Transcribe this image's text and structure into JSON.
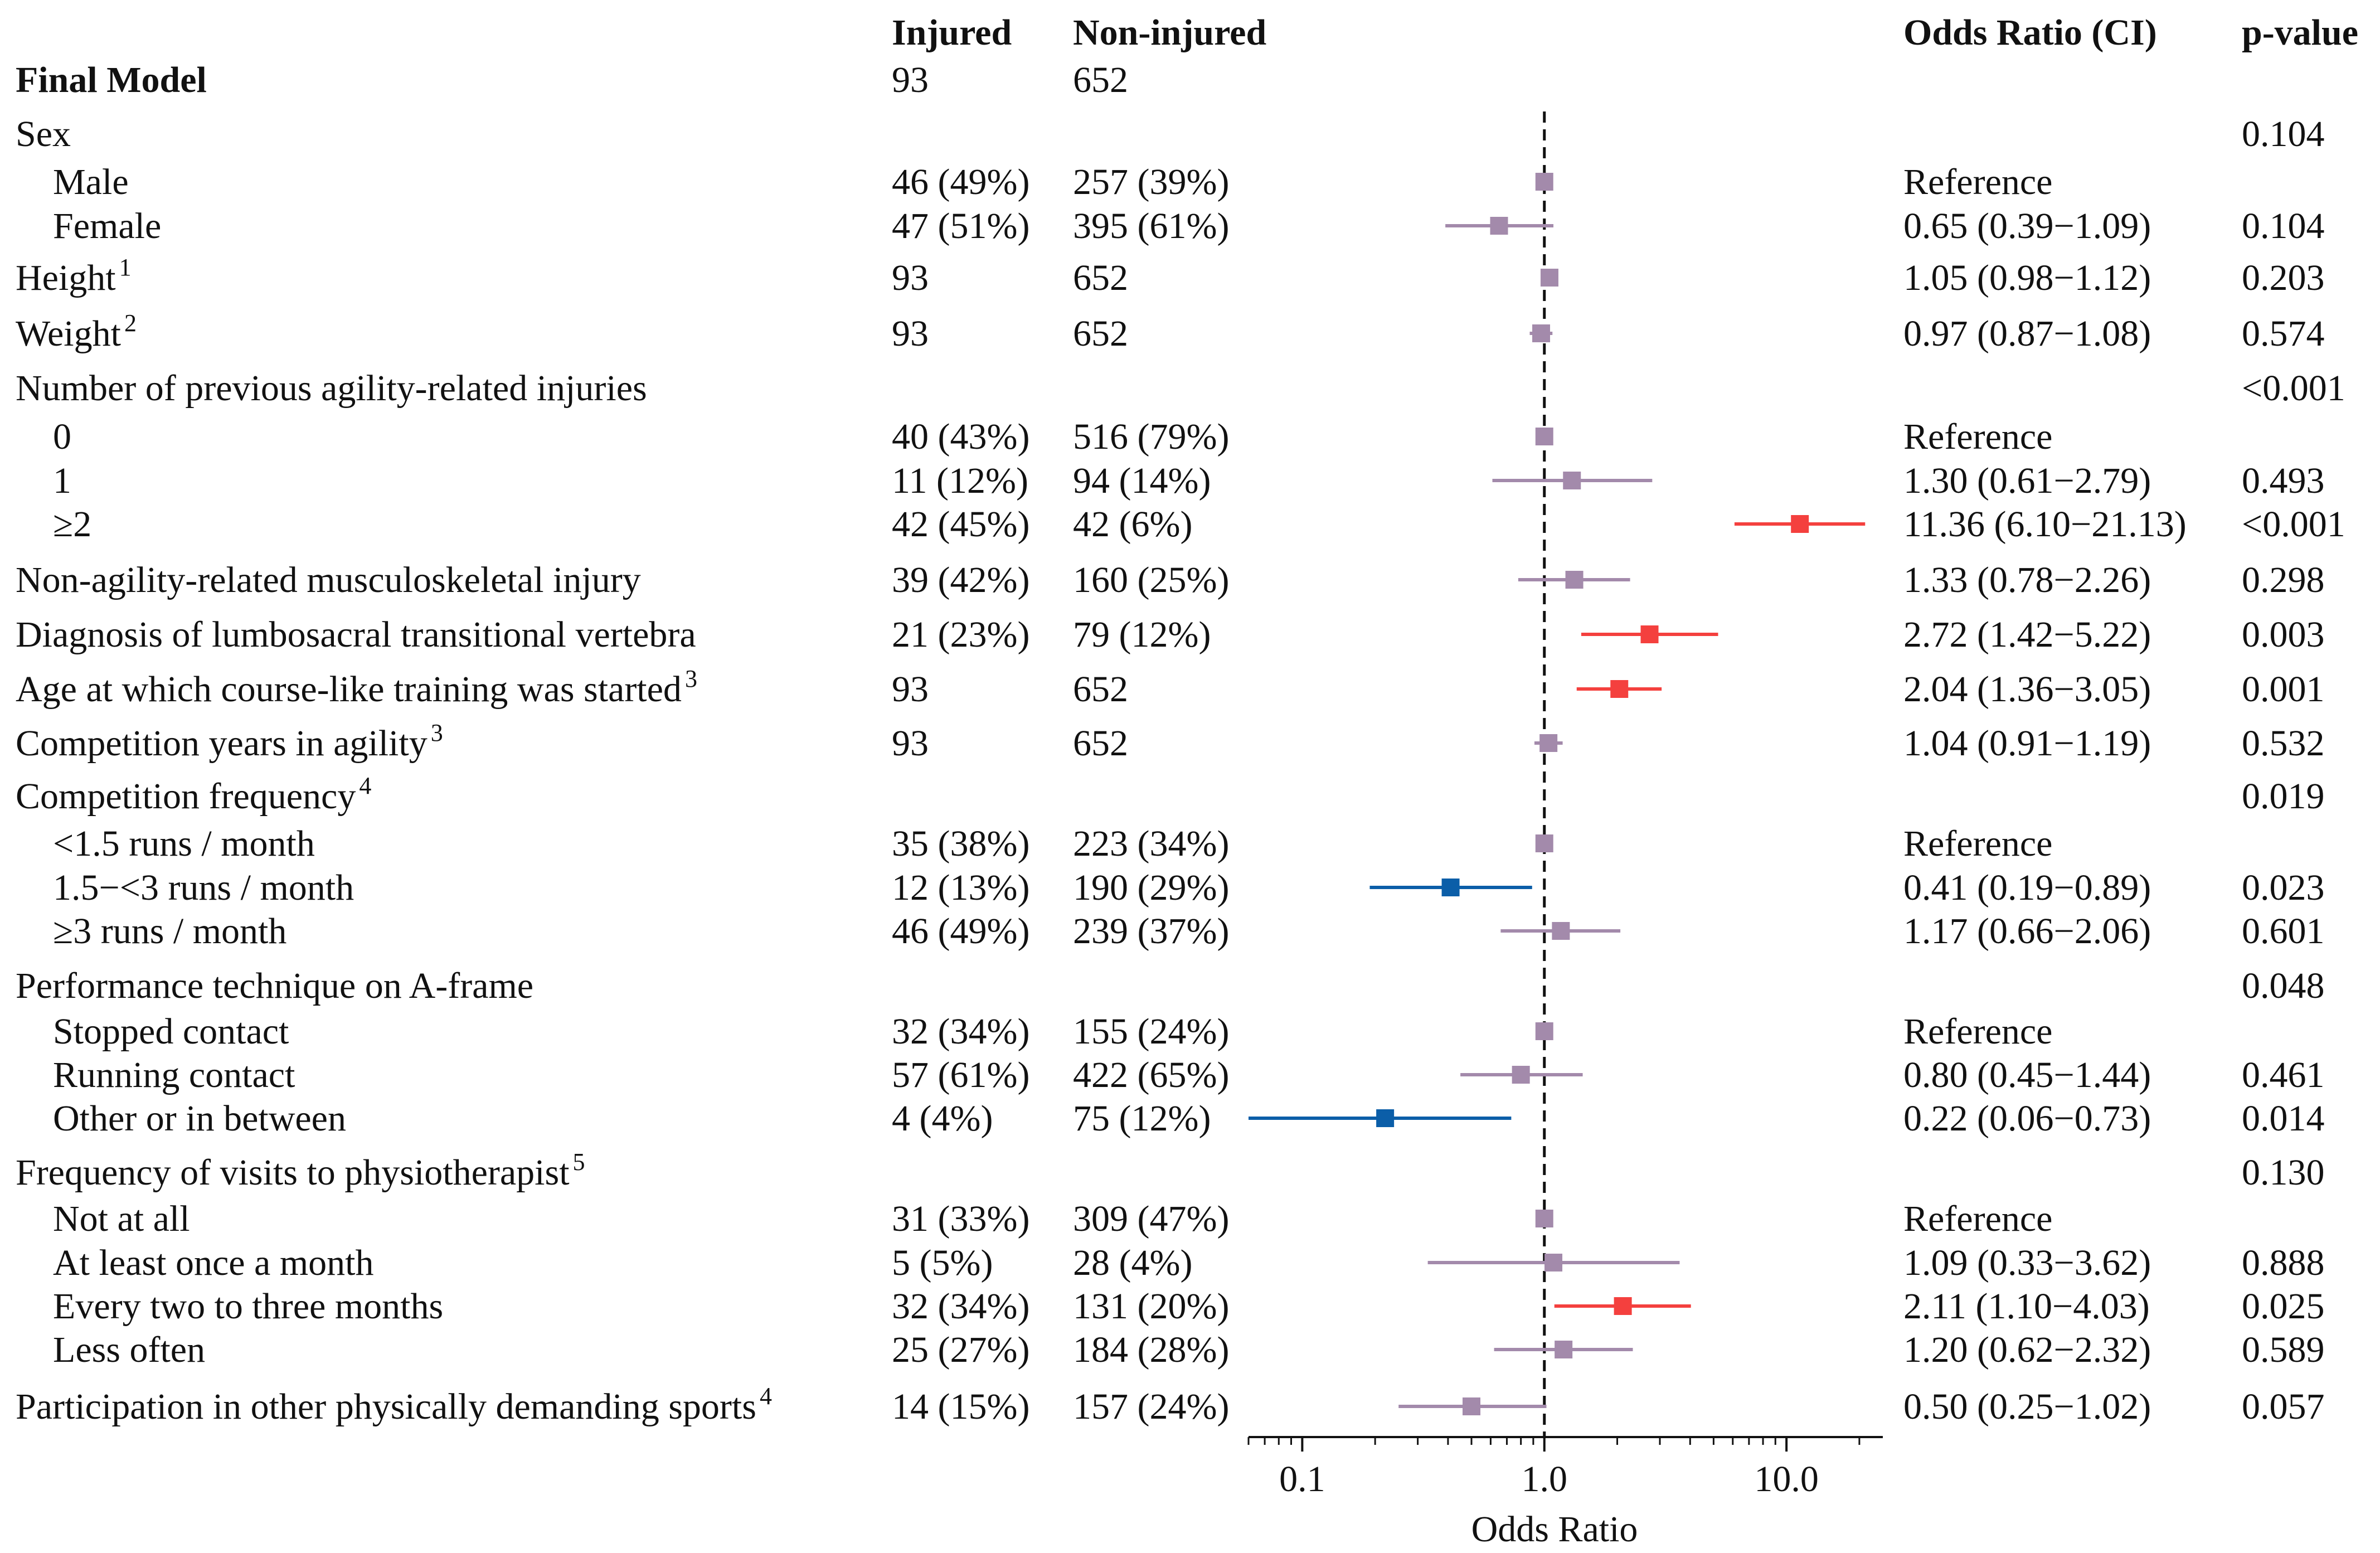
{
  "chart_data": {
    "type": "forest",
    "xlabel": "Odds Ratio",
    "xscale": "log",
    "xlim": [
      0.06,
      25
    ],
    "xticks": [
      0.1,
      1.0,
      10.0
    ],
    "xtick_labels": [
      "0.1",
      "1.0",
      "10.0"
    ],
    "reference_line": 1,
    "headers": {
      "injured": "Injured",
      "non_injured": "Non-injured",
      "or_ci": "Odds Ratio (CI)",
      "p": "p-value"
    },
    "colors": {
      "neutral": "#a38aab",
      "increased": "#f4403e",
      "decreased": "#0b5ea8",
      "reference_line": "#111111"
    },
    "rows": [
      {
        "label": "Final Model",
        "bold": true,
        "injured": "93",
        "non_injured": "652"
      },
      {
        "label": "Sex",
        "p": "0.104"
      },
      {
        "label": "Male",
        "indent": true,
        "injured": "46 (49%)",
        "non_injured": "257 (39%)",
        "or_text": "Reference",
        "or": 1.0
      },
      {
        "label": "Female",
        "indent": true,
        "injured": "47 (51%)",
        "non_injured": "395 (61%)",
        "or_text": "0.65 (0.39−1.09)",
        "p": "0.104",
        "or": 0.65,
        "lo": 0.39,
        "hi": 1.09
      },
      {
        "label": "Height",
        "sup": "1",
        "injured": "93",
        "non_injured": "652",
        "or_text": "1.05 (0.98−1.12)",
        "p": "0.203",
        "or": 1.05,
        "lo": 0.98,
        "hi": 1.12
      },
      {
        "label": "Weight",
        "sup": "2",
        "injured": "93",
        "non_injured": "652",
        "or_text": "0.97 (0.87−1.08)",
        "p": "0.574",
        "or": 0.97,
        "lo": 0.87,
        "hi": 1.08
      },
      {
        "label": "Number of previous agility-related injuries",
        "p": "<0.001"
      },
      {
        "label": "0",
        "indent": true,
        "injured": "40 (43%)",
        "non_injured": "516 (79%)",
        "or_text": "Reference",
        "or": 1.0
      },
      {
        "label": "1",
        "indent": true,
        "injured": "11 (12%)",
        "non_injured": "94 (14%)",
        "or_text": "1.30 (0.61−2.79)",
        "p": "0.493",
        "or": 1.3,
        "lo": 0.61,
        "hi": 2.79
      },
      {
        "label": "≥2",
        "indent": true,
        "injured": "42 (45%)",
        "non_injured": "42 (6%)",
        "or_text": "11.36 (6.10−21.13)",
        "p": "<0.001",
        "or": 11.36,
        "lo": 6.1,
        "hi": 21.13
      },
      {
        "label": "Non-agility-related musculoskeletal injury",
        "injured": "39 (42%)",
        "non_injured": "160 (25%)",
        "or_text": "1.33 (0.78−2.26)",
        "p": "0.298",
        "or": 1.33,
        "lo": 0.78,
        "hi": 2.26
      },
      {
        "label": "Diagnosis of lumbosacral transitional vertebra",
        "injured": "21 (23%)",
        "non_injured": "79 (12%)",
        "or_text": "2.72 (1.42−5.22)",
        "p": "0.003",
        "or": 2.72,
        "lo": 1.42,
        "hi": 5.22
      },
      {
        "label": "Age at which course-like training was started",
        "sup": "3",
        "injured": "93",
        "non_injured": "652",
        "or_text": "2.04 (1.36−3.05)",
        "p": "0.001",
        "or": 2.04,
        "lo": 1.36,
        "hi": 3.05
      },
      {
        "label": "Competition years in agility",
        "sup": "3",
        "injured": "93",
        "non_injured": "652",
        "or_text": "1.04 (0.91−1.19)",
        "p": "0.532",
        "or": 1.04,
        "lo": 0.91,
        "hi": 1.19
      },
      {
        "label": "Competition frequency",
        "sup": "4",
        "p": "0.019"
      },
      {
        "label": "<1.5 runs / month",
        "indent": true,
        "injured": "35 (38%)",
        "non_injured": "223 (34%)",
        "or_text": "Reference",
        "or": 1.0
      },
      {
        "label": "1.5−<3 runs / month",
        "indent": true,
        "injured": "12 (13%)",
        "non_injured": "190 (29%)",
        "or_text": "0.41 (0.19−0.89)",
        "p": "0.023",
        "or": 0.41,
        "lo": 0.19,
        "hi": 0.89
      },
      {
        "label": "≥3 runs / month",
        "indent": true,
        "injured": "46 (49%)",
        "non_injured": "239 (37%)",
        "or_text": "1.17 (0.66−2.06)",
        "p": "0.601",
        "or": 1.17,
        "lo": 0.66,
        "hi": 2.06
      },
      {
        "label": "Performance technique on A-frame",
        "p": "0.048"
      },
      {
        "label": "Stopped contact",
        "indent": true,
        "injured": "32 (34%)",
        "non_injured": "155 (24%)",
        "or_text": "Reference",
        "or": 1.0
      },
      {
        "label": "Running contact",
        "indent": true,
        "injured": "57 (61%)",
        "non_injured": "422 (65%)",
        "or_text": "0.80 (0.45−1.44)",
        "p": "0.461",
        "or": 0.8,
        "lo": 0.45,
        "hi": 1.44
      },
      {
        "label": "Other or in between",
        "indent": true,
        "injured": "4 (4%)",
        "non_injured": "75 (12%)",
        "or_text": "0.22 (0.06−0.73)",
        "p": "0.014",
        "or": 0.22,
        "lo": 0.06,
        "hi": 0.73
      },
      {
        "label": "Frequency of visits to physiotherapist",
        "sup": "5",
        "p": "0.130"
      },
      {
        "label": "Not at all",
        "indent": true,
        "injured": "31 (33%)",
        "non_injured": "309 (47%)",
        "or_text": "Reference",
        "or": 1.0
      },
      {
        "label": "At least once a month",
        "indent": true,
        "injured": "5 (5%)",
        "non_injured": "28 (4%)",
        "or_text": "1.09 (0.33−3.62)",
        "p": "0.888",
        "or": 1.09,
        "lo": 0.33,
        "hi": 3.62
      },
      {
        "label": "Every two to three months",
        "indent": true,
        "injured": "32 (34%)",
        "non_injured": "131 (20%)",
        "or_text": "2.11 (1.10−4.03)",
        "p": "0.025",
        "or": 2.11,
        "lo": 1.1,
        "hi": 4.03
      },
      {
        "label": "Less often",
        "indent": true,
        "injured": "25 (27%)",
        "non_injured": "184 (28%)",
        "or_text": "1.20 (0.62−2.32)",
        "p": "0.589",
        "or": 1.2,
        "lo": 0.62,
        "hi": 2.32
      },
      {
        "label": "Participation in other physically demanding sports",
        "sup": "4",
        "injured": "14 (15%)",
        "non_injured": "157 (24%)",
        "or_text": "0.50 (0.25−1.02)",
        "p": "0.057",
        "or": 0.5,
        "lo": 0.25,
        "hi": 1.02
      }
    ]
  }
}
